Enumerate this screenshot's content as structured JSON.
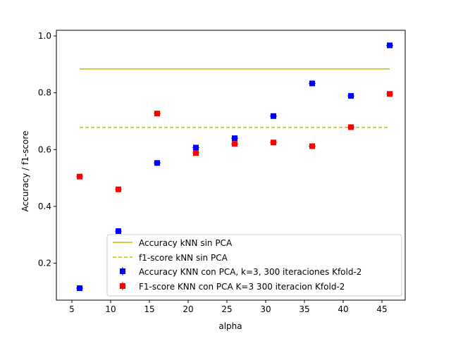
{
  "chart_data": {
    "type": "scatter",
    "title": "",
    "xlabel": "alpha",
    "ylabel": "Accuracy / f1-score",
    "xlim": [
      3.0,
      48.0
    ],
    "ylim": [
      0.07,
      1.02
    ],
    "x_ticks": [
      5,
      10,
      15,
      20,
      25,
      30,
      35,
      40,
      45
    ],
    "y_ticks": [
      0.2,
      0.4,
      0.6,
      0.8,
      1.0
    ],
    "x_tick_labels": [
      "5",
      "10",
      "15",
      "20",
      "25",
      "30",
      "35",
      "40",
      "45"
    ],
    "y_tick_labels": [
      "0.2",
      "0.4",
      "0.6",
      "0.8",
      "1.0"
    ],
    "grid": false,
    "legend_position": "lower-right",
    "lines": [
      {
        "name": "Accuracy kNN sin PCA",
        "x": [
          6,
          46
        ],
        "y": [
          0.884,
          0.884
        ],
        "color": "#bfbf00",
        "style": "solid"
      },
      {
        "name": "f1-score kNN sin PCA",
        "x": [
          6,
          46
        ],
        "y": [
          0.678,
          0.678
        ],
        "color": "#bfbf00",
        "style": "dashed"
      }
    ],
    "series": [
      {
        "name": "Accuracy KNN con PCA, k=3, 300 iteraciones Kfold-2",
        "color": "#0000ff",
        "x": [
          6,
          11,
          16,
          21,
          26,
          31,
          36,
          41,
          46
        ],
        "y": [
          0.112,
          0.313,
          0.553,
          0.607,
          0.64,
          0.718,
          0.833,
          0.789,
          0.967
        ],
        "err": [
          0.005,
          0.005,
          0.005,
          0.005,
          0.005,
          0.005,
          0.005,
          0.005,
          0.005
        ]
      },
      {
        "name": "F1-score KNN con PCA K=3 300 iteracion Kfold-2",
        "color": "#ff0000",
        "x": [
          6,
          11,
          16,
          21,
          26,
          31,
          36,
          41,
          46
        ],
        "y": [
          0.505,
          0.46,
          0.727,
          0.588,
          0.62,
          0.625,
          0.612,
          0.679,
          0.796
        ],
        "err": [
          0.006,
          0.006,
          0.006,
          0.006,
          0.006,
          0.006,
          0.006,
          0.006,
          0.006
        ]
      }
    ]
  }
}
